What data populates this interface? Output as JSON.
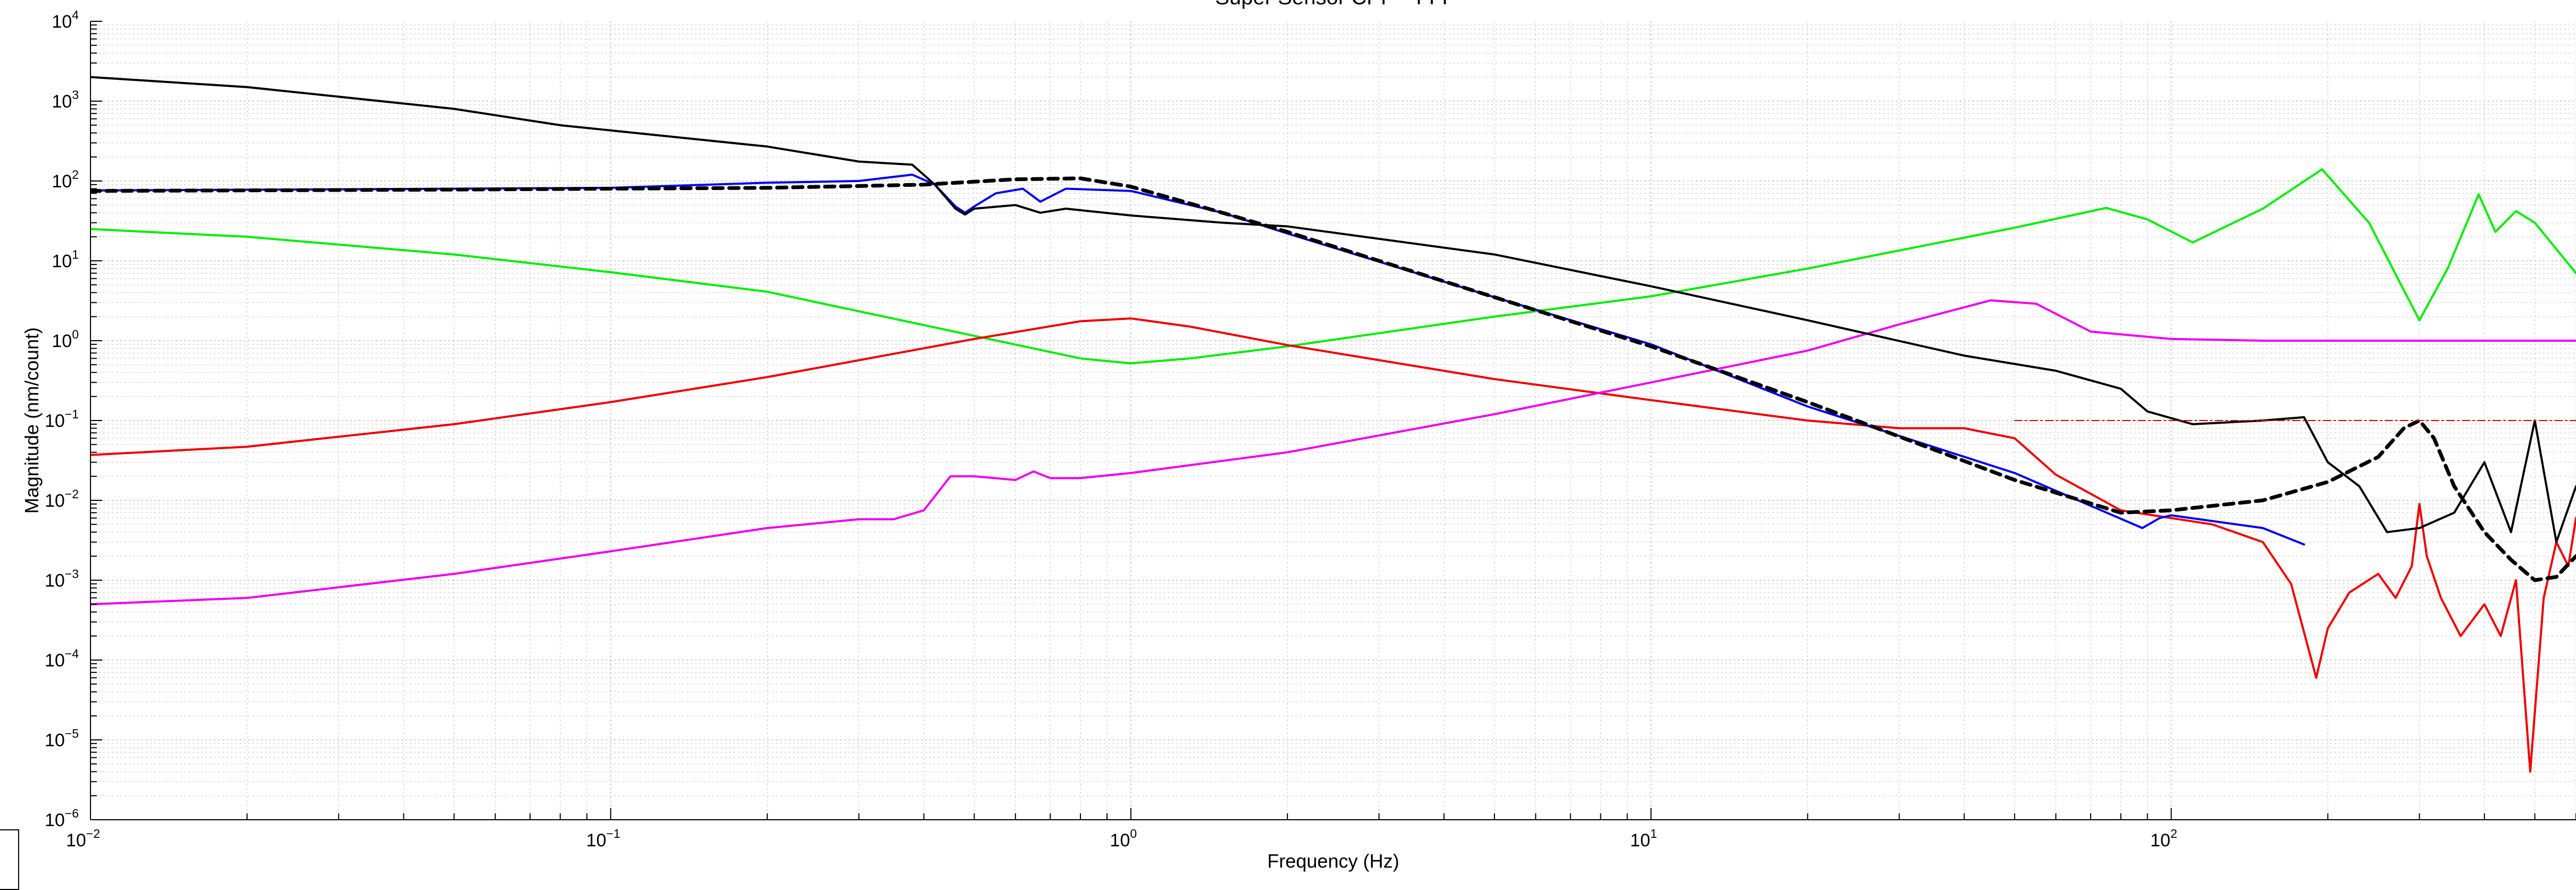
{
  "chart_data": {
    "type": "line",
    "title": "Super Sensor CPF - TTT",
    "xlabel": "Frequency (Hz)",
    "ylabel": "Magnitude (nm/count)",
    "xscale": "log",
    "yscale": "log",
    "xlim": [
      0.01,
      600
    ],
    "ylim": [
      1e-06,
      10000
    ],
    "grid": true,
    "x_ticks": [
      {
        "base": "10",
        "exp": "−2",
        "value": 0.01
      },
      {
        "base": "10",
        "exp": "−1",
        "value": 0.1
      },
      {
        "base": "10",
        "exp": "0",
        "value": 1
      },
      {
        "base": "10",
        "exp": "1",
        "value": 10
      },
      {
        "base": "10",
        "exp": "2",
        "value": 100
      }
    ],
    "y_ticks": [
      {
        "base": "10",
        "exp": "−6",
        "value": 1e-06
      },
      {
        "base": "10",
        "exp": "−5",
        "value": 1e-05
      },
      {
        "base": "10",
        "exp": "−4",
        "value": 0.0001
      },
      {
        "base": "10",
        "exp": "−3",
        "value": 0.001
      },
      {
        "base": "10",
        "exp": "−2",
        "value": 0.01
      },
      {
        "base": "10",
        "exp": "−1",
        "value": 0.1
      },
      {
        "base": "10",
        "exp": "0",
        "value": 1
      },
      {
        "base": "10",
        "exp": "1",
        "value": 10
      },
      {
        "base": "10",
        "exp": "2",
        "value": 100
      },
      {
        "base": "10",
        "exp": "3",
        "value": 1000
      },
      {
        "base": "10",
        "exp": "4",
        "value": 10000
      }
    ],
    "series": [
      {
        "color": "#00ee00",
        "style": "solid",
        "width": 4,
        "x": [
          0.01,
          0.02,
          0.05,
          0.1,
          0.2,
          0.5,
          0.8,
          1,
          1.3,
          2,
          5,
          10,
          20,
          50,
          75,
          90,
          110,
          150,
          195,
          240,
          300,
          340,
          390,
          420,
          460,
          500,
          600
        ],
        "y": [
          25,
          20,
          12,
          7.2,
          4.1,
          1.15,
          0.6,
          0.52,
          0.6,
          0.85,
          2.0,
          3.6,
          8,
          26,
          46,
          33,
          17,
          45,
          140,
          30,
          1.8,
          8,
          68,
          23,
          42,
          30,
          7
        ]
      },
      {
        "color": "#ee0000",
        "style": "solid",
        "width": 4,
        "x": [
          0.01,
          0.02,
          0.05,
          0.1,
          0.2,
          0.5,
          0.8,
          1,
          1.3,
          2,
          5,
          10,
          20,
          30,
          40,
          50,
          60,
          80,
          100,
          120,
          150,
          170,
          190,
          200,
          220,
          250,
          270,
          290,
          300,
          310,
          330,
          360,
          400,
          430,
          460,
          490,
          520,
          550,
          580,
          600
        ],
        "y": [
          0.037,
          0.047,
          0.09,
          0.17,
          0.35,
          1.05,
          1.75,
          1.9,
          1.5,
          0.88,
          0.33,
          0.18,
          0.1,
          0.08,
          0.08,
          0.06,
          0.021,
          0.0075,
          0.006,
          0.005,
          0.003,
          0.0009,
          6e-05,
          0.00025,
          0.0007,
          0.0012,
          0.0006,
          0.0015,
          0.009,
          0.002,
          0.0006,
          0.0002,
          0.0005,
          0.0002,
          0.001,
          4e-06,
          0.0006,
          0.003,
          0.0015,
          0.006
        ]
      },
      {
        "color": "#ee00ee",
        "style": "solid",
        "width": 4,
        "x": [
          0.01,
          0.02,
          0.05,
          0.1,
          0.2,
          0.3,
          0.35,
          0.4,
          0.45,
          0.5,
          0.6,
          0.65,
          0.7,
          0.8,
          1,
          2,
          5,
          10,
          20,
          30,
          45,
          55,
          70,
          100,
          150,
          200,
          300,
          600
        ],
        "y": [
          0.0005,
          0.0006,
          0.0012,
          0.0023,
          0.0045,
          0.0058,
          0.0058,
          0.0075,
          0.02,
          0.02,
          0.018,
          0.023,
          0.019,
          0.019,
          0.022,
          0.04,
          0.12,
          0.3,
          0.75,
          1.6,
          3.2,
          2.9,
          1.3,
          1.05,
          1.0,
          1.0,
          1.0,
          1.0
        ]
      },
      {
        "color": "#0000ee",
        "style": "solid",
        "width": 4,
        "x": [
          0.01,
          0.05,
          0.1,
          0.2,
          0.3,
          0.38,
          0.42,
          0.46,
          0.48,
          0.5,
          0.55,
          0.62,
          0.67,
          0.75,
          1,
          1.5,
          2,
          5,
          10,
          20,
          50,
          88,
          95,
          100,
          150,
          180
        ],
        "y": [
          76,
          80,
          82,
          95,
          100,
          120,
          90,
          48,
          40,
          48,
          70,
          80,
          55,
          80,
          75,
          40,
          22,
          3.5,
          0.9,
          0.15,
          0.022,
          0.0045,
          0.006,
          0.0065,
          0.0045,
          0.0028
        ]
      },
      {
        "color": "#000000",
        "style": "solid",
        "width": 4,
        "x": [
          0.01,
          0.02,
          0.05,
          0.08,
          0.1,
          0.2,
          0.3,
          0.38,
          0.42,
          0.46,
          0.48,
          0.5,
          0.6,
          0.67,
          0.75,
          1,
          1.5,
          2,
          5,
          10,
          20,
          40,
          60,
          80,
          90,
          110,
          150,
          180,
          200,
          230,
          260,
          300,
          350,
          400,
          450,
          500,
          550,
          600
        ],
        "y": [
          2000,
          1500,
          800,
          500,
          430,
          270,
          175,
          160,
          90,
          45,
          38,
          45,
          50,
          40,
          45,
          37,
          30,
          27,
          12,
          4.8,
          1.8,
          0.65,
          0.42,
          0.25,
          0.13,
          0.09,
          0.1,
          0.11,
          0.03,
          0.015,
          0.004,
          0.0045,
          0.007,
          0.03,
          0.004,
          0.1,
          0.003,
          0.015
        ]
      },
      {
        "color": "#000000",
        "style": "dashed",
        "width": 7,
        "x": [
          0.01,
          0.05,
          0.1,
          0.2,
          0.4,
          0.6,
          0.8,
          1,
          1.5,
          2,
          5,
          10,
          20,
          50,
          80,
          100,
          150,
          200,
          250,
          280,
          300,
          320,
          350,
          400,
          450,
          500,
          550,
          600
        ],
        "y": [
          75,
          78,
          80,
          82,
          90,
          105,
          108,
          85,
          40,
          23,
          3.5,
          0.85,
          0.17,
          0.018,
          0.007,
          0.0075,
          0.01,
          0.017,
          0.035,
          0.08,
          0.1,
          0.06,
          0.015,
          0.004,
          0.0018,
          0.001,
          0.0011,
          0.002
        ]
      },
      {
        "color": "#cc0000",
        "style": "dashdot",
        "width": 2,
        "x": [
          50,
          600
        ],
        "y": [
          0.1,
          0.1
        ]
      }
    ]
  }
}
